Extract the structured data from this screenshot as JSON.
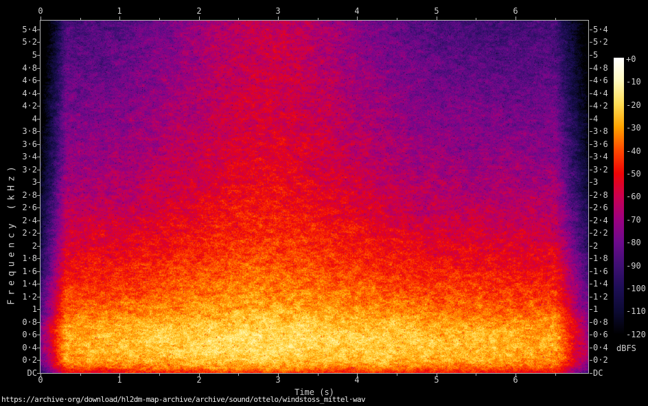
{
  "labels": {
    "xlabel": "Time (s)",
    "ylabel": "Frequency (kHz)",
    "colorbar_units": "dBFS",
    "footer_url": "https://archive·org/download/hl2dm-map-archive/archive/sound/ottelo/windstoss_mittel·wav"
  },
  "chart_data": {
    "type": "heatmap",
    "subtype": "audio-spectrogram",
    "xlabel": "Time (s)",
    "ylabel": "Frequency (kHz)",
    "x_range_s": [
      0,
      6.92
    ],
    "y_range_khz": [
      0,
      5.54
    ],
    "x_tick_labels": [
      "0",
      "1",
      "2",
      "3",
      "4",
      "5",
      "6"
    ],
    "x_tick_values_s": [
      0,
      1,
      2,
      3,
      4,
      5,
      6
    ],
    "x_minor_tick_values_s": [
      0.5,
      1.5,
      2.5,
      3.5,
      4.5,
      5.5,
      6.5
    ],
    "y_tick_step_khz": 0.2,
    "y_tick_labels_bottom_to_top": [
      "DC",
      "0·2",
      "0·4",
      "0·6",
      "0·8",
      "1",
      "1·2",
      "1·4",
      "1·6",
      "1·8",
      "2",
      "2·2",
      "2·4",
      "2·6",
      "2·8",
      "3",
      "3·2",
      "3·4",
      "3·6",
      "3·8",
      "4",
      "4·2",
      "4·4",
      "4·6",
      "4·8",
      "5",
      "5·2",
      "5·4"
    ],
    "grid": false,
    "axes_color": "#b6b6b6",
    "label_color": "#cfcfcf",
    "colorbar": {
      "units": "dBFS",
      "max_db": 0,
      "min_db": -120,
      "tick_labels": [
        "+0",
        "-10",
        "-20",
        "-30",
        "-40",
        "-50",
        "-60",
        "-70",
        "-80",
        "-90",
        "-100",
        "-110",
        "-120"
      ],
      "gradient_stops_db_hex": [
        [
          -120,
          "#000000"
        ],
        [
          -110,
          "#0c0a32"
        ],
        [
          -100,
          "#1d0e55"
        ],
        [
          -90,
          "#3f0f74"
        ],
        [
          -80,
          "#6c0a8c"
        ],
        [
          -70,
          "#9d0080"
        ],
        [
          -60,
          "#cb004e"
        ],
        [
          -50,
          "#ef0505"
        ],
        [
          -40,
          "#ff4a00"
        ],
        [
          -30,
          "#ffa200"
        ],
        [
          -20,
          "#ffdd55"
        ],
        [
          -10,
          "#fff9be"
        ],
        [
          0,
          "#ffffff"
        ]
      ]
    },
    "intensity_model": {
      "description": "Broadband wind-gust noise: energy peaks near 0.3-0.7 kHz (yellow/near-white), decays with frequency to purple/indigo by 5 kHz; overall swell peaking around t=2.9 s, fade-in before 0.3 s and fade-out after 6.5 s; mottled noise texture with sparse dark speckles.",
      "freq_profile_db": [
        [
          0,
          -52
        ],
        [
          0.08,
          -40
        ],
        [
          0.2,
          -31
        ],
        [
          0.35,
          -28.5
        ],
        [
          0.55,
          -28
        ],
        [
          0.75,
          -31
        ],
        [
          1.0,
          -38
        ],
        [
          1.25,
          -43
        ],
        [
          1.5,
          -48
        ],
        [
          2.0,
          -56
        ],
        [
          2.5,
          -63
        ],
        [
          3.0,
          -69
        ],
        [
          3.5,
          -74
        ],
        [
          4.0,
          -78
        ],
        [
          4.5,
          -82
        ],
        [
          5.0,
          -86
        ],
        [
          5.54,
          -90
        ]
      ],
      "swell": {
        "t": 2.9,
        "sigma": 1.45,
        "base_db": 8,
        "freq_extra_db": 20,
        "freq_pow": 1.3
      },
      "bumps": [
        {
          "t": 1.6,
          "sigma": 0.5,
          "db": 2
        },
        {
          "t": 4.55,
          "sigma": 0.5,
          "db": 3.5
        },
        {
          "t": 5.5,
          "sigma": 0.4,
          "db": 3.5
        }
      ],
      "bump_freq_falloff_khz": 1.5,
      "fade_in_s": 0.32,
      "fade_in_db": 48,
      "fade_out_start_s": 6.5,
      "fade_out_db": 40,
      "noise": {
        "coarse_db": 5,
        "coarse2_db": 3.5,
        "fine_db": 7,
        "speckle_prob": 0.012,
        "speckle_db": 18
      }
    }
  }
}
